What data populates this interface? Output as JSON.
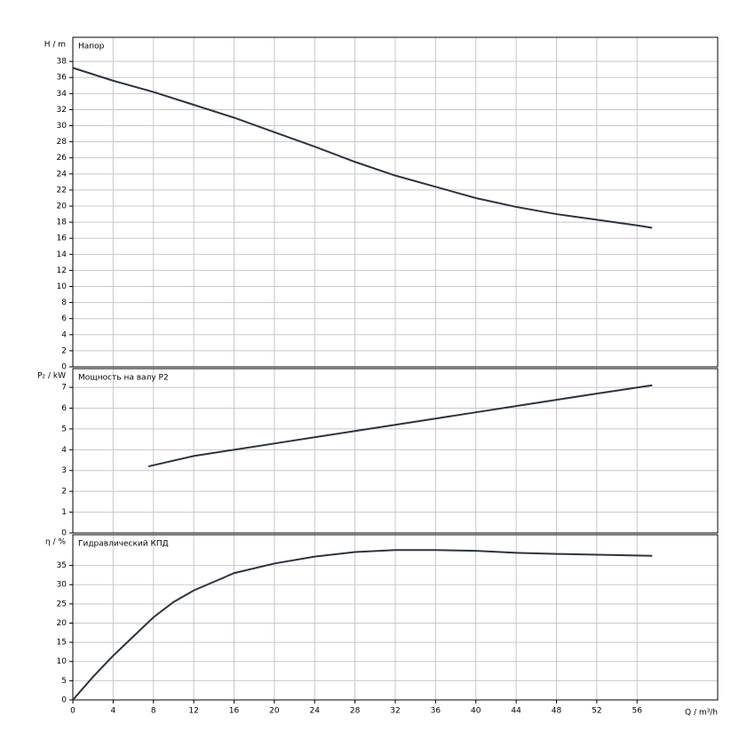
{
  "chart_data": [
    {
      "type": "line",
      "title": "Напор",
      "ylabel": "H / m",
      "x": [
        0,
        4,
        8,
        12,
        16,
        20,
        24,
        28,
        32,
        36,
        40,
        44,
        48,
        52,
        56,
        57.5
      ],
      "series": [
        {
          "name": "Напор",
          "color": "#2b3440",
          "values": [
            37.2,
            35.6,
            34.2,
            32.6,
            31.0,
            29.2,
            27.4,
            25.5,
            23.8,
            22.4,
            21.0,
            19.9,
            19.0,
            18.3,
            17.6,
            17.3
          ]
        }
      ],
      "xlim": [
        0,
        64
      ],
      "xticks": [
        0,
        4,
        8,
        12,
        16,
        20,
        24,
        28,
        32,
        36,
        40,
        44,
        48,
        52,
        56
      ],
      "ylim": [
        0,
        41
      ],
      "yticks": [
        0,
        2,
        4,
        6,
        8,
        10,
        12,
        14,
        16,
        18,
        20,
        22,
        24,
        26,
        28,
        30,
        32,
        34,
        36,
        38
      ],
      "grid": true
    },
    {
      "type": "line",
      "title": "Мощность на валу P2",
      "ylabel": "P₂ / kW",
      "x": [
        7.5,
        12,
        16,
        20,
        24,
        28,
        32,
        36,
        40,
        44,
        48,
        52,
        57.5
      ],
      "series": [
        {
          "name": "Мощность на валу P2",
          "color": "#2b3440",
          "values": [
            3.2,
            3.7,
            4.0,
            4.3,
            4.6,
            4.9,
            5.2,
            5.5,
            5.8,
            6.1,
            6.4,
            6.7,
            7.1
          ]
        }
      ],
      "xlim": [
        0,
        64
      ],
      "xticks": [
        0,
        4,
        8,
        12,
        16,
        20,
        24,
        28,
        32,
        36,
        40,
        44,
        48,
        52,
        56
      ],
      "ylim": [
        0,
        7.9
      ],
      "yticks": [
        0,
        1,
        2,
        3,
        4,
        5,
        6,
        7
      ],
      "grid": true
    },
    {
      "type": "line",
      "title": "Гидравлический КПД",
      "ylabel": "η / %",
      "xlabel": "Q / m³/h",
      "x": [
        0,
        2,
        4,
        6,
        8,
        10,
        12,
        16,
        20,
        24,
        28,
        32,
        36,
        40,
        44,
        48,
        52,
        57.5
      ],
      "series": [
        {
          "name": "Гидравлический КПД",
          "color": "#2b3440",
          "values": [
            0,
            6,
            11.5,
            16.5,
            21.5,
            25.5,
            28.5,
            33,
            35.5,
            37.3,
            38.5,
            39,
            39,
            38.8,
            38.3,
            38,
            37.8,
            37.5
          ]
        }
      ],
      "xlim": [
        0,
        64
      ],
      "xticks": [
        0,
        4,
        8,
        12,
        16,
        20,
        24,
        28,
        32,
        36,
        40,
        44,
        48,
        52,
        56
      ],
      "ylim": [
        0,
        43
      ],
      "yticks": [
        0,
        5,
        10,
        15,
        20,
        25,
        30,
        35
      ],
      "grid": true
    }
  ]
}
